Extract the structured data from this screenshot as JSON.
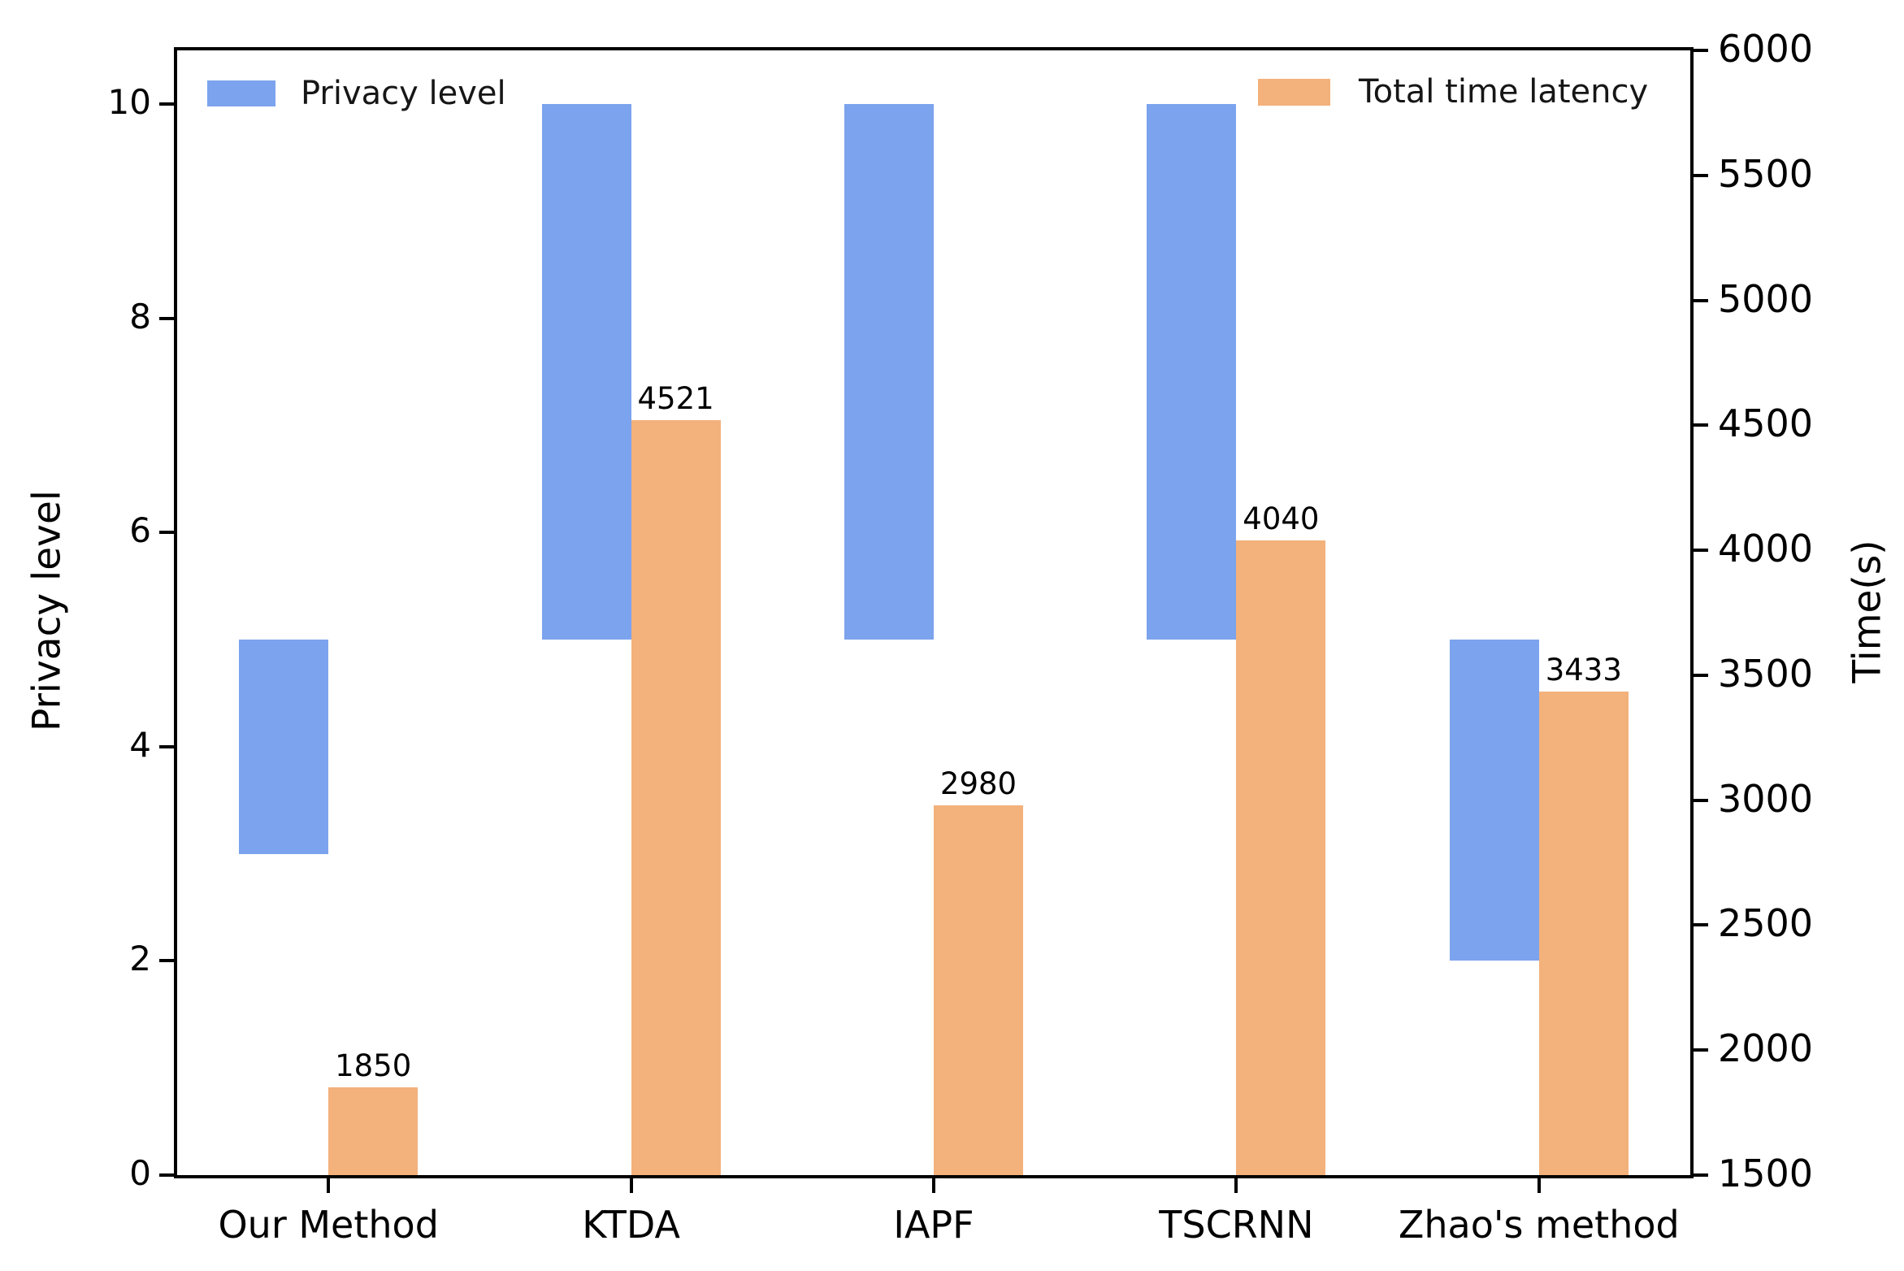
{
  "figure_background": "#ffffff",
  "legend": {
    "privacy_label": "Privacy level",
    "latency_label": "Total time latency"
  },
  "axes": {
    "left_title": "Privacy level",
    "right_title": "Time(s)"
  },
  "colors": {
    "privacy_bar": "#7CA3ED",
    "latency_bar": "#F3B17C",
    "axis": "#000000"
  },
  "chart_data": {
    "type": "bar",
    "title": "",
    "categories": [
      "Our Method",
      "KTDA",
      "IAPF",
      "TSCRNN",
      "Zhao's method"
    ],
    "series": [
      {
        "name": "Privacy level",
        "axis": "left",
        "style": "range-bar",
        "color": "#7CA3ED",
        "ranges": [
          [
            3,
            5
          ],
          [
            5,
            10
          ],
          [
            5,
            10
          ],
          [
            5,
            10
          ],
          [
            2,
            5
          ]
        ]
      },
      {
        "name": "Total time latency",
        "axis": "right",
        "style": "bar",
        "color": "#F3B17C",
        "base": 1500,
        "values": [
          1850,
          4521,
          2980,
          4040,
          3433
        ]
      }
    ],
    "value_labels": [
      "1850",
      "4521",
      "2980",
      "4040",
      "3433"
    ],
    "left_axis": {
      "label": "Privacy level",
      "min": 0,
      "max": 10.5,
      "ticks": [
        0,
        2,
        4,
        6,
        8,
        10
      ]
    },
    "right_axis": {
      "label": "Time(s)",
      "min": 1500,
      "max": 6000,
      "ticks": [
        1500,
        2000,
        2500,
        3000,
        3500,
        4000,
        4500,
        5000,
        5500,
        6000
      ]
    },
    "grid": false,
    "legend_position": "upper-left and upper-right inside plot"
  }
}
